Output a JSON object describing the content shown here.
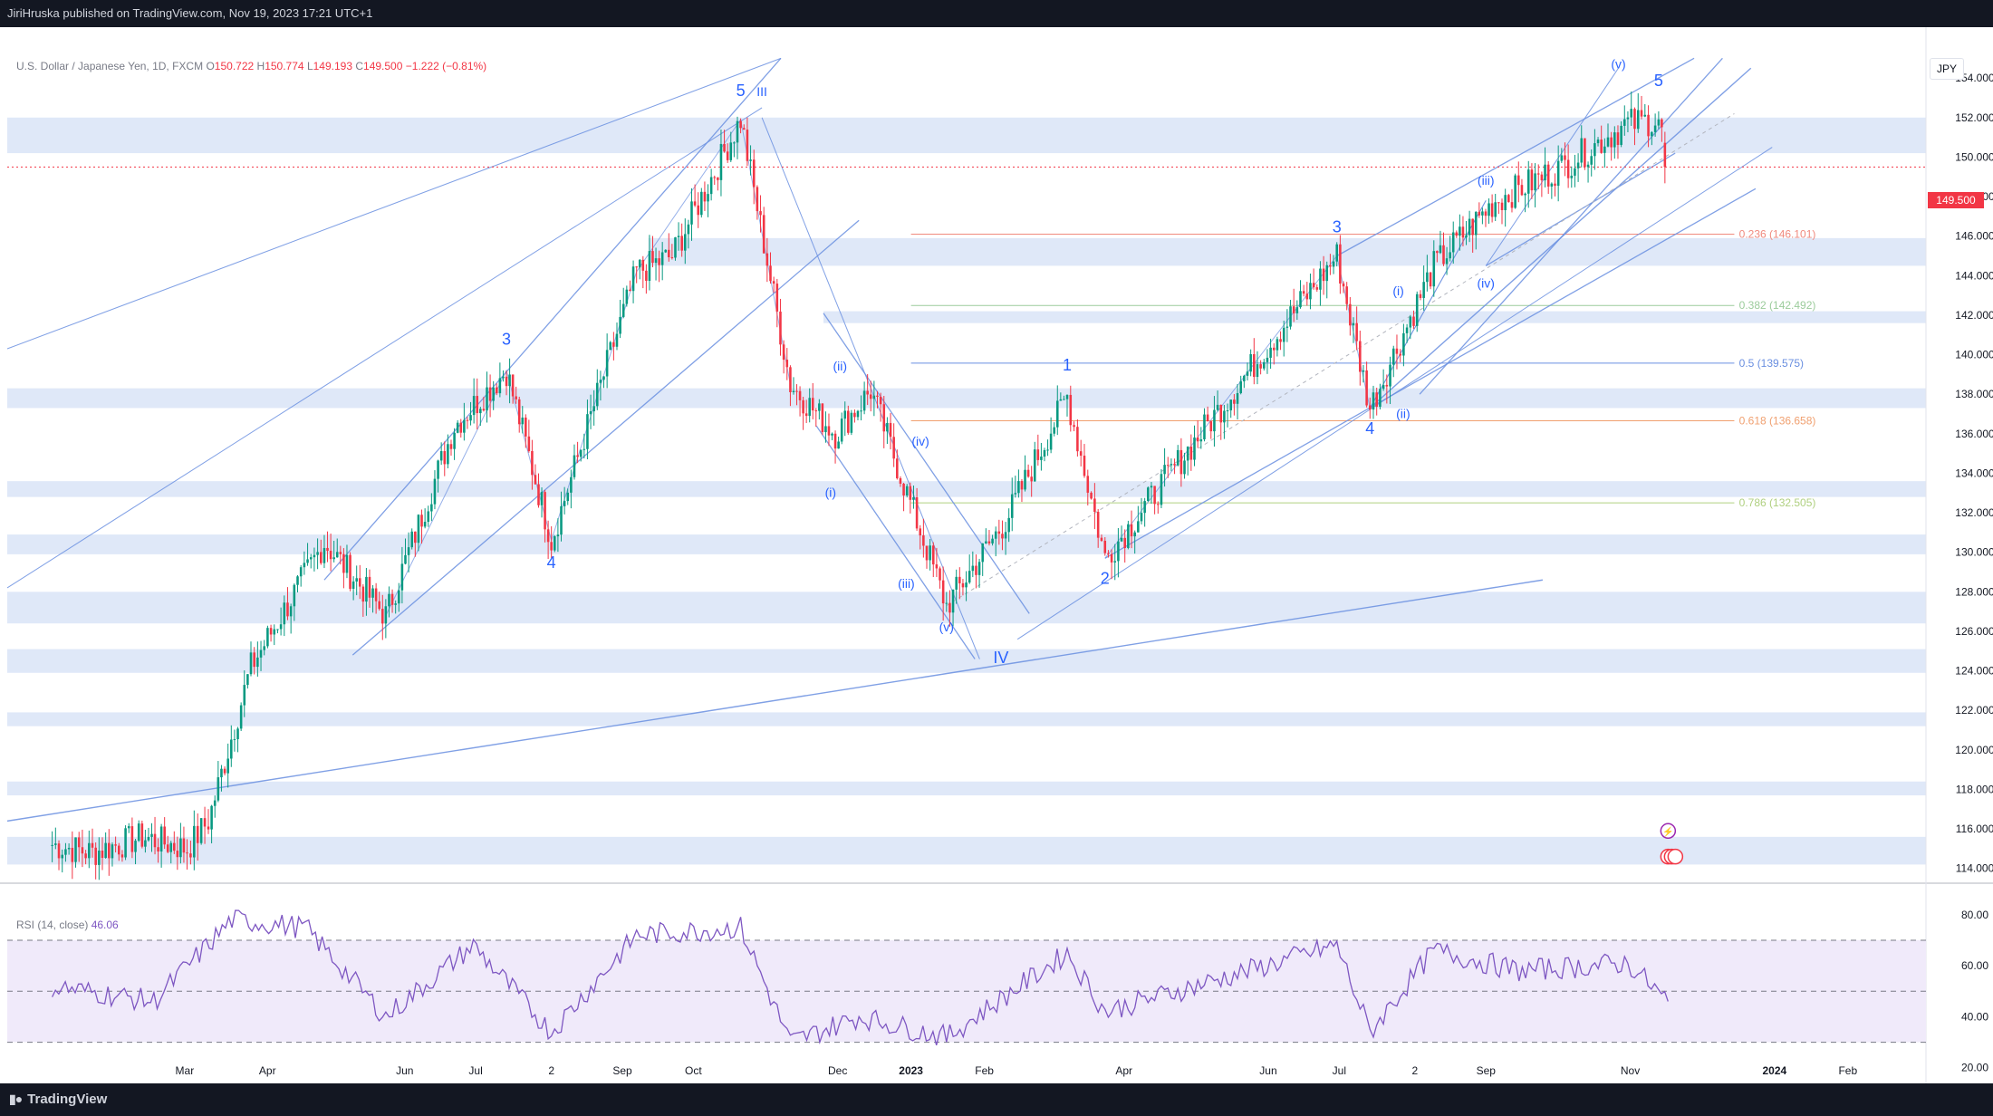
{
  "header": {
    "published_text": "JiriHruska published on TradingView.com, Nov 19, 2023 17:21 UTC+1"
  },
  "legend": {
    "symbol": "U.S. Dollar / Japanese Yen, 1D, FXCM",
    "open_label": "O",
    "open": "150.722",
    "high_label": "H",
    "high": "150.774",
    "low_label": "L",
    "low": "149.193",
    "close_label": "C",
    "close": "149.500",
    "change": "−1.222 (−0.81%)"
  },
  "currency_button": "JPY",
  "last_price_tag": "149.500",
  "rsi_legend": {
    "label": "RSI (14, close)",
    "value": "46.06"
  },
  "footer": {
    "brand": "TradingView",
    "logo_icon": "tradingview-logo-icon"
  },
  "colors": {
    "up": "#089981",
    "down": "#f23645",
    "zone": "#dfe8f8",
    "line": "#6a8fe0",
    "rsi": "#7e57c2",
    "rsi_band": "#f0eafa",
    "bg": "#ffffff",
    "chrome": "#131722"
  },
  "chart_data": {
    "type": "candlestick",
    "price_axis": {
      "ticks": [
        "154.000",
        "152.000",
        "150.000",
        "148.000",
        "146.000",
        "144.000",
        "142.000",
        "140.000",
        "138.000",
        "136.000",
        "134.000",
        "132.000",
        "130.000",
        "128.000",
        "126.000",
        "124.000",
        "122.000",
        "120.000",
        "118.000",
        "116.000",
        "114.000"
      ]
    },
    "time_axis": {
      "labels": [
        "Mar",
        "Apr",
        "Jun",
        "Jul",
        "2",
        "Sep",
        "Oct",
        "Dec",
        "2023",
        "Feb",
        "Apr",
        "Jun",
        "Jul",
        "2",
        "Sep",
        "Nov",
        "2024",
        "Feb"
      ]
    },
    "price_path": [
      {
        "d": "2022-01-03",
        "p": 115.2
      },
      {
        "d": "2022-01-20",
        "p": 114.8
      },
      {
        "d": "2022-02-10",
        "p": 115.6
      },
      {
        "d": "2022-03-01",
        "p": 115.0
      },
      {
        "d": "2022-03-10",
        "p": 116.4
      },
      {
        "d": "2022-03-28",
        "p": 124.2
      },
      {
        "d": "2022-04-28",
        "p": 130.5
      },
      {
        "d": "2022-05-24",
        "p": 126.8
      },
      {
        "d": "2022-06-22",
        "p": 136.4
      },
      {
        "d": "2022-07-14",
        "p": 139.2
      },
      {
        "d": "2022-08-02",
        "p": 130.6
      },
      {
        "d": "2022-09-07",
        "p": 144.2
      },
      {
        "d": "2022-09-22",
        "p": 145.0
      },
      {
        "d": "2022-10-21",
        "p": 151.9
      },
      {
        "d": "2022-11-11",
        "p": 138.5
      },
      {
        "d": "2022-11-30",
        "p": 136.0
      },
      {
        "d": "2022-12-15",
        "p": 138.2
      },
      {
        "d": "2023-01-16",
        "p": 127.3
      },
      {
        "d": "2023-02-10",
        "p": 131.6
      },
      {
        "d": "2023-03-08",
        "p": 137.9
      },
      {
        "d": "2023-03-24",
        "p": 129.7
      },
      {
        "d": "2023-06-30",
        "p": 145.0
      },
      {
        "d": "2023-07-14",
        "p": 137.3
      },
      {
        "d": "2023-08-10",
        "p": 144.5
      },
      {
        "d": "2023-09-05",
        "p": 147.8
      },
      {
        "d": "2023-10-03",
        "p": 149.5
      },
      {
        "d": "2023-10-31",
        "p": 151.7
      },
      {
        "d": "2023-11-13",
        "p": 151.9
      },
      {
        "d": "2023-11-17",
        "p": 149.5
      }
    ],
    "last_candle": {
      "open": 150.722,
      "high": 150.774,
      "low": 149.193,
      "close": 149.5
    },
    "zones": [
      [
        150.2,
        152.0
      ],
      [
        144.5,
        145.9
      ],
      [
        141.6,
        142.2
      ],
      [
        137.3,
        138.3
      ],
      [
        132.8,
        133.6
      ],
      [
        129.9,
        130.9
      ],
      [
        126.4,
        128.0
      ],
      [
        123.9,
        125.1
      ],
      [
        121.2,
        121.9
      ],
      [
        117.7,
        118.4
      ],
      [
        114.2,
        115.6
      ]
    ],
    "fibonacci": [
      {
        "label": "0.236 (146.101)",
        "price": 146.101,
        "color": "#f08a7e"
      },
      {
        "label": "0.382 (142.492)",
        "price": 142.492,
        "color": "#9ccc9c"
      },
      {
        "label": "0.5 (139.575)",
        "price": 139.575,
        "color": "#6a8fe0"
      },
      {
        "label": "0.618 (136.658)",
        "price": 136.658,
        "color": "#f0a070"
      },
      {
        "label": "0.786 (132.505)",
        "price": 132.505,
        "color": "#b0d080"
      }
    ],
    "wave_labels": [
      {
        "text": "5",
        "d": "2022-10-21",
        "p": 153.1
      },
      {
        "text": "III",
        "d": "2022-10-30",
        "p": 153.1
      },
      {
        "text": "3",
        "d": "2022-07-14",
        "p": 140.5
      },
      {
        "text": "4",
        "d": "2022-08-02",
        "p": 129.2
      },
      {
        "text": "(ii)",
        "d": "2022-12-02",
        "p": 139.2
      },
      {
        "text": "(i)",
        "d": "2022-11-28",
        "p": 132.8
      },
      {
        "text": "(iv)",
        "d": "2023-01-05",
        "p": 135.4
      },
      {
        "text": "(iii)",
        "d": "2022-12-30",
        "p": 128.2
      },
      {
        "text": "(v)",
        "d": "2023-01-16",
        "p": 126.0
      },
      {
        "text": "IV",
        "d": "2023-02-08",
        "p": 124.4
      },
      {
        "text": "1",
        "d": "2023-03-08",
        "p": 139.2
      },
      {
        "text": "2",
        "d": "2023-03-24",
        "p": 128.4
      },
      {
        "text": "3",
        "d": "2023-06-30",
        "p": 146.2
      },
      {
        "text": "4",
        "d": "2023-07-14",
        "p": 136.0
      },
      {
        "text": "(i)",
        "d": "2023-07-26",
        "p": 143.0
      },
      {
        "text": "(ii)",
        "d": "2023-07-28",
        "p": 136.8
      },
      {
        "text": "(iii)",
        "d": "2023-09-01",
        "p": 148.6
      },
      {
        "text": "(iv)",
        "d": "2023-09-01",
        "p": 143.4
      },
      {
        "text": "(v)",
        "d": "2023-10-27",
        "p": 154.5
      },
      {
        "text": "5",
        "d": "2023-11-13",
        "p": 153.6
      }
    ],
    "rsi": {
      "levels": [
        70,
        50,
        30
      ],
      "axis_ticks": [
        "80.00",
        "60.00",
        "40.00",
        "20.00"
      ],
      "value": 46.06,
      "path": [
        {
          "d": "2022-01-03",
          "v": 52
        },
        {
          "d": "2022-02-15",
          "v": 46
        },
        {
          "d": "2022-03-20",
          "v": 78
        },
        {
          "d": "2022-04-20",
          "v": 75
        },
        {
          "d": "2022-05-24",
          "v": 40
        },
        {
          "d": "2022-06-30",
          "v": 68
        },
        {
          "d": "2022-08-02",
          "v": 34
        },
        {
          "d": "2022-09-07",
          "v": 72
        },
        {
          "d": "2022-10-21",
          "v": 75
        },
        {
          "d": "2022-11-11",
          "v": 30
        },
        {
          "d": "2022-12-10",
          "v": 40
        },
        {
          "d": "2023-01-16",
          "v": 32
        },
        {
          "d": "2023-03-08",
          "v": 65
        },
        {
          "d": "2023-03-24",
          "v": 42
        },
        {
          "d": "2023-06-30",
          "v": 68
        },
        {
          "d": "2023-07-14",
          "v": 34
        },
        {
          "d": "2023-08-10",
          "v": 66
        },
        {
          "d": "2023-09-15",
          "v": 58
        },
        {
          "d": "2023-10-31",
          "v": 61
        },
        {
          "d": "2023-11-17",
          "v": 46
        }
      ]
    }
  }
}
